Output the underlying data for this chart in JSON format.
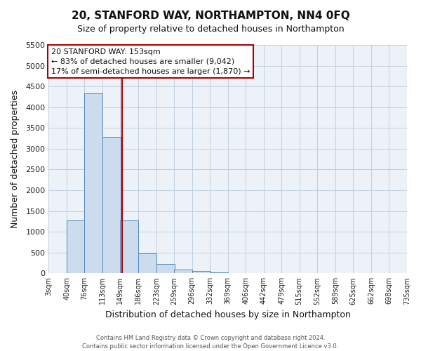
{
  "title": "20, STANFORD WAY, NORTHAMPTON, NN4 0FQ",
  "subtitle": "Size of property relative to detached houses in Northampton",
  "xlabel": "Distribution of detached houses by size in Northampton",
  "ylabel": "Number of detached properties",
  "bar_left_edges": [
    3,
    40,
    76,
    113,
    149,
    186,
    223,
    259,
    296,
    332,
    369,
    406,
    442,
    479,
    515,
    552,
    589,
    625,
    662,
    698
  ],
  "bar_heights": [
    0,
    1270,
    4330,
    3280,
    1280,
    480,
    230,
    90,
    50,
    30,
    10,
    5,
    0,
    0,
    0,
    0,
    0,
    0,
    0,
    0
  ],
  "bin_width": 37,
  "tick_labels": [
    "3sqm",
    "40sqm",
    "76sqm",
    "113sqm",
    "149sqm",
    "186sqm",
    "223sqm",
    "259sqm",
    "296sqm",
    "332sqm",
    "369sqm",
    "406sqm",
    "442sqm",
    "479sqm",
    "515sqm",
    "552sqm",
    "589sqm",
    "625sqm",
    "662sqm",
    "698sqm",
    "735sqm"
  ],
  "bar_color": "#ccdcee",
  "bar_edge_color": "#5588bb",
  "vline_x": 153,
  "vline_color": "#aa0000",
  "annotation_line1": "20 STANFORD WAY: 153sqm",
  "annotation_line2": "← 83% of detached houses are smaller (9,042)",
  "annotation_line3": "17% of semi-detached houses are larger (1,870) →",
  "annotation_box_color": "#aa0000",
  "ylim": [
    0,
    5500
  ],
  "yticks": [
    0,
    500,
    1000,
    1500,
    2000,
    2500,
    3000,
    3500,
    4000,
    4500,
    5000,
    5500
  ],
  "grid_color": "#c0cfe0",
  "bg_color": "#edf2f8",
  "footer_line1": "Contains HM Land Registry data © Crown copyright and database right 2024.",
  "footer_line2": "Contains public sector information licensed under the Open Government Licence v3.0."
}
